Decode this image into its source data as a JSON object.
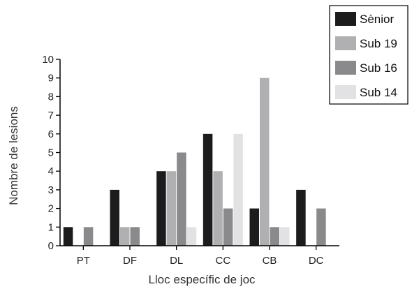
{
  "chart_data": {
    "type": "bar",
    "xlabel": "Lloc específic de joc",
    "ylabel": "Nombre de lesions",
    "ylim": [
      0,
      10
    ],
    "yticks": [
      0,
      1,
      2,
      3,
      4,
      5,
      6,
      7,
      8,
      9,
      10
    ],
    "categories": [
      "PT",
      "DF",
      "DL",
      "CC",
      "CB",
      "DC"
    ],
    "series": [
      {
        "name": "Sènior",
        "color": "#1c1c1c",
        "values": [
          1,
          3,
          4,
          6,
          2,
          3
        ]
      },
      {
        "name": "Sub 19",
        "color": "#b0b0b2",
        "values": [
          0,
          1,
          4,
          4,
          9,
          0
        ]
      },
      {
        "name": "Sub 16",
        "color": "#8a8a8c",
        "values": [
          1,
          1,
          5,
          2,
          1,
          2
        ]
      },
      {
        "name": "Sub 14",
        "color": "#e2e2e4",
        "values": [
          0,
          0,
          1,
          6,
          1,
          0
        ]
      }
    ],
    "legend_position": "top-right",
    "grid": false
  }
}
